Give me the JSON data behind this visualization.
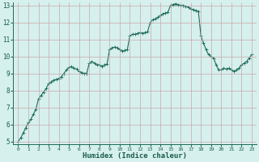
{
  "xlabel": "Humidex (Indice chaleur)",
  "background_color": "#d6f0ee",
  "grid_color": "#c8a8a8",
  "line_color": "#1a6b5a",
  "ylim": [
    5,
    13
  ],
  "xlim": [
    -0.5,
    23.5
  ],
  "yticks": [
    5,
    6,
    7,
    8,
    9,
    10,
    11,
    12,
    13
  ],
  "xticks": [
    0,
    1,
    2,
    3,
    4,
    5,
    6,
    7,
    8,
    9,
    10,
    11,
    12,
    13,
    14,
    15,
    16,
    17,
    18,
    19,
    20,
    21,
    22,
    23
  ],
  "x_values": [
    0.0,
    0.25,
    0.5,
    0.75,
    1.0,
    1.25,
    1.5,
    1.75,
    2.0,
    2.25,
    2.5,
    2.75,
    3.0,
    3.25,
    3.5,
    3.75,
    4.0,
    4.25,
    4.5,
    4.75,
    5.0,
    5.25,
    5.5,
    5.75,
    6.0,
    6.25,
    6.5,
    6.75,
    7.0,
    7.25,
    7.5,
    7.75,
    8.0,
    8.25,
    8.5,
    8.75,
    9.0,
    9.25,
    9.5,
    9.75,
    10.0,
    10.25,
    10.5,
    10.75,
    11.0,
    11.25,
    11.5,
    11.75,
    12.0,
    12.25,
    12.5,
    12.75,
    13.0,
    13.25,
    13.5,
    13.75,
    14.0,
    14.25,
    14.5,
    14.75,
    15.0,
    15.25,
    15.5,
    15.75,
    16.0,
    16.25,
    16.5,
    16.75,
    17.0,
    17.25,
    17.5,
    17.75,
    18.0,
    18.25,
    18.5,
    18.75,
    19.0,
    19.25,
    19.5,
    19.75,
    20.0,
    20.25,
    20.5,
    20.75,
    21.0,
    21.25,
    21.5,
    21.75,
    22.0,
    22.25,
    22.5,
    22.75,
    23.0
  ],
  "y_values": [
    5.0,
    5.2,
    5.5,
    5.8,
    6.1,
    6.3,
    6.6,
    6.9,
    7.5,
    7.7,
    7.9,
    8.1,
    8.4,
    8.5,
    8.6,
    8.65,
    8.7,
    8.8,
    9.0,
    9.2,
    9.35,
    9.4,
    9.3,
    9.25,
    9.1,
    9.05,
    9.0,
    9.0,
    9.6,
    9.7,
    9.6,
    9.5,
    9.5,
    9.4,
    9.5,
    9.55,
    10.4,
    10.5,
    10.55,
    10.5,
    10.4,
    10.3,
    10.35,
    10.4,
    11.2,
    11.3,
    11.3,
    11.35,
    11.4,
    11.35,
    11.4,
    11.45,
    12.0,
    12.15,
    12.2,
    12.3,
    12.4,
    12.5,
    12.55,
    12.6,
    13.0,
    13.05,
    13.1,
    13.05,
    13.0,
    13.0,
    12.95,
    12.9,
    12.8,
    12.75,
    12.7,
    12.65,
    11.2,
    10.8,
    10.4,
    10.1,
    10.0,
    9.9,
    9.5,
    9.2,
    9.2,
    9.3,
    9.25,
    9.3,
    9.2,
    9.1,
    9.2,
    9.3,
    9.5,
    9.6,
    9.7,
    9.9,
    10.1
  ]
}
